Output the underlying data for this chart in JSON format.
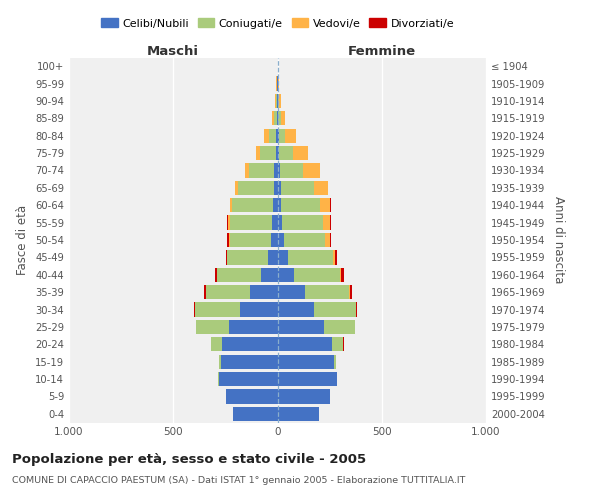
{
  "age_groups": [
    "0-4",
    "5-9",
    "10-14",
    "15-19",
    "20-24",
    "25-29",
    "30-34",
    "35-39",
    "40-44",
    "45-49",
    "50-54",
    "55-59",
    "60-64",
    "65-69",
    "70-74",
    "75-79",
    "80-84",
    "85-89",
    "90-94",
    "95-99",
    "100+"
  ],
  "birth_years": [
    "2000-2004",
    "1995-1999",
    "1990-1994",
    "1985-1989",
    "1980-1984",
    "1975-1979",
    "1970-1974",
    "1965-1969",
    "1960-1964",
    "1955-1959",
    "1950-1954",
    "1945-1949",
    "1940-1944",
    "1935-1939",
    "1930-1934",
    "1925-1929",
    "1920-1924",
    "1915-1919",
    "1910-1914",
    "1905-1909",
    "≤ 1904"
  ],
  "male_celibe": [
    215,
    245,
    280,
    270,
    265,
    235,
    180,
    130,
    80,
    45,
    30,
    25,
    22,
    18,
    15,
    8,
    5,
    3,
    2,
    1,
    0
  ],
  "male_coniugato": [
    0,
    0,
    3,
    10,
    55,
    155,
    215,
    215,
    210,
    195,
    200,
    205,
    195,
    170,
    120,
    75,
    35,
    12,
    5,
    2,
    0
  ],
  "male_vedovo": [
    0,
    0,
    0,
    0,
    0,
    0,
    0,
    0,
    2,
    3,
    5,
    8,
    10,
    15,
    20,
    20,
    25,
    10,
    5,
    2,
    0
  ],
  "male_divorziato": [
    0,
    0,
    0,
    0,
    0,
    3,
    5,
    8,
    10,
    5,
    5,
    5,
    3,
    2,
    0,
    0,
    0,
    0,
    0,
    0,
    0
  ],
  "female_nubile": [
    200,
    250,
    285,
    270,
    260,
    225,
    175,
    130,
    80,
    50,
    30,
    22,
    18,
    15,
    12,
    8,
    5,
    3,
    2,
    1,
    0
  ],
  "female_coniugata": [
    0,
    0,
    2,
    10,
    55,
    145,
    200,
    215,
    220,
    215,
    200,
    195,
    185,
    160,
    110,
    65,
    30,
    12,
    5,
    1,
    0
  ],
  "female_vedova": [
    0,
    0,
    0,
    0,
    0,
    0,
    0,
    2,
    5,
    12,
    20,
    35,
    50,
    65,
    80,
    75,
    55,
    20,
    8,
    3,
    0
  ],
  "female_divorziata": [
    0,
    0,
    0,
    0,
    2,
    3,
    8,
    12,
    12,
    10,
    8,
    6,
    4,
    2,
    2,
    0,
    0,
    0,
    0,
    0,
    0
  ],
  "color_celibe": "#4472C4",
  "color_coniugato": "#AACB7C",
  "color_vedovo": "#FFB347",
  "color_divorziato": "#CC0000",
  "xlim": 1000,
  "title": "Popolazione per età, sesso e stato civile - 2005",
  "subtitle": "COMUNE DI CAPACCIO PAESTUM (SA) - Dati ISTAT 1° gennaio 2005 - Elaborazione TUTTITALIA.IT",
  "ylabel_left": "Fasce di età",
  "ylabel_right": "Anni di nascita",
  "xlabel_maschi": "Maschi",
  "xlabel_femmine": "Femmine",
  "legend_labels": [
    "Celibi/Nubili",
    "Coniugati/e",
    "Vedovi/e",
    "Divorziati/e"
  ],
  "bg_color": "#FFFFFF",
  "plot_bg_color": "#F0F0F0"
}
